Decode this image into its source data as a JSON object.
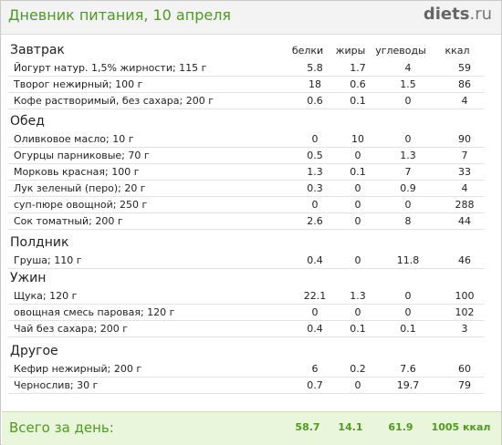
{
  "header": {
    "title": "Дневник питания, 10 апреля",
    "logo_main": "diets",
    "logo_domain": ".ru"
  },
  "columns": [
    "белки",
    "жиры",
    "углеводы",
    "ккал"
  ],
  "sections": [
    {
      "title": "Завтрак",
      "items": [
        {
          "name": "Йогурт натур. 1,5% жирности; 115 г",
          "protein": "5.8",
          "fat": "1.7",
          "carbs": "4",
          "kcal": "59"
        },
        {
          "name": "Творог нежирный; 100 г",
          "protein": "18",
          "fat": "0.6",
          "carbs": "1.5",
          "kcal": "86"
        },
        {
          "name": "Кофе растворимый, без сахара; 200 г",
          "protein": "0.6",
          "fat": "0.1",
          "carbs": "0",
          "kcal": "4"
        }
      ]
    },
    {
      "title": "Обед",
      "items": [
        {
          "name": "Оливковое масло; 10 г",
          "protein": "0",
          "fat": "10",
          "carbs": "0",
          "kcal": "90"
        },
        {
          "name": "Огурцы парниковые; 70 г",
          "protein": "0.5",
          "fat": "0",
          "carbs": "1.3",
          "kcal": "7"
        },
        {
          "name": "Морковь красная; 100 г",
          "protein": "1.3",
          "fat": "0.1",
          "carbs": "7",
          "kcal": "33"
        },
        {
          "name": "Лук зеленый (перо); 20 г",
          "protein": "0.3",
          "fat": "0",
          "carbs": "0.9",
          "kcal": "4"
        },
        {
          "name": "суп-пюре овощной; 250 г",
          "protein": "0",
          "fat": "0",
          "carbs": "0",
          "kcal": "288"
        },
        {
          "name": "Сок томатный; 200 г",
          "protein": "2.6",
          "fat": "0",
          "carbs": "8",
          "kcal": "44"
        }
      ]
    },
    {
      "title": "Полдник",
      "items": [
        {
          "name": "Груша; 110 г",
          "protein": "0.4",
          "fat": "0",
          "carbs": "11.8",
          "kcal": "46"
        }
      ]
    },
    {
      "title": "Ужин",
      "items": [
        {
          "name": "Щука; 120 г",
          "protein": "22.1",
          "fat": "1.3",
          "carbs": "0",
          "kcal": "100"
        },
        {
          "name": "овощная смесь паровая; 120 г",
          "protein": "0",
          "fat": "0",
          "carbs": "0",
          "kcal": "102"
        },
        {
          "name": "Чай без сахара; 200 г",
          "protein": "0.4",
          "fat": "0.1",
          "carbs": "0.1",
          "kcal": "3"
        }
      ]
    },
    {
      "title": "Другое",
      "items": [
        {
          "name": "Кефир нежирный; 200 г",
          "protein": "6",
          "fat": "0.2",
          "carbs": "7.6",
          "kcal": "60"
        },
        {
          "name": "Чернослив; 30 г",
          "protein": "0.7",
          "fat": "0",
          "carbs": "19.7",
          "kcal": "79"
        }
      ]
    }
  ],
  "totals": {
    "label": "Всего за день:",
    "protein": "58.7",
    "fat": "14.1",
    "carbs": "61.9",
    "kcal": "1005 ккал"
  },
  "colors": {
    "accent_green": "#4d9b1f",
    "footer_bg": "#e9f6dc"
  }
}
